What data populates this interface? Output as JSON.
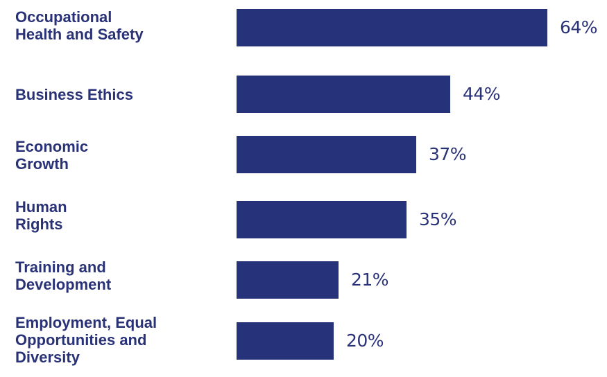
{
  "chart_data": {
    "type": "bar",
    "orientation": "horizontal",
    "categories": [
      "Occupational\nHealth and Safety",
      "Business Ethics",
      "Economic\nGrowth",
      "Human\nRights",
      "Training and\nDevelopment",
      "Employment, Equal\nOpportunities and\nDiversity"
    ],
    "values": [
      64,
      44,
      37,
      35,
      21,
      20
    ],
    "value_labels": [
      "64%",
      "44%",
      "37%",
      "35%",
      "21%",
      "20%"
    ],
    "unit": "%",
    "title": "",
    "xlabel": "",
    "ylabel": "",
    "xlim": [
      0,
      64
    ],
    "grid": false,
    "legend": "none"
  },
  "colors": {
    "bar": "#26337a",
    "text": "#2a3277",
    "background": "#ffffff"
  }
}
